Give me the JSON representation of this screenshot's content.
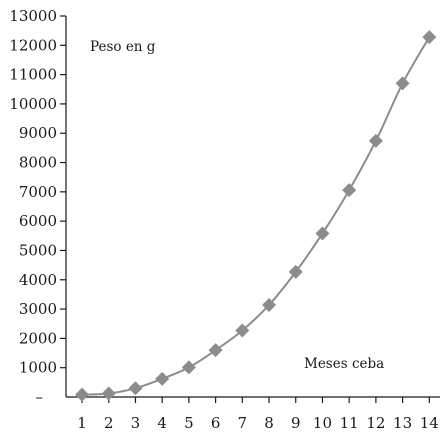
{
  "chart_data": {
    "type": "line",
    "title": "",
    "xlabel": "Meses ceba",
    "ylabel": "Peso en g",
    "y_zero_label": "–",
    "x": [
      1,
      2,
      3,
      4,
      5,
      6,
      7,
      8,
      9,
      10,
      11,
      12,
      13,
      14
    ],
    "xlim": [
      0.4,
      14.4
    ],
    "ylim": [
      0,
      13000
    ],
    "y_ticks": [
      1000,
      2000,
      3000,
      4000,
      5000,
      6000,
      7000,
      8000,
      9000,
      10000,
      11000,
      12000,
      13000
    ],
    "series": [
      {
        "color": "#8c8c8c",
        "marker": "diamond",
        "values": [
          80,
          120,
          300,
          620,
          1010,
          1600,
          2270,
          3140,
          4270,
          5580,
          7060,
          8740,
          10700,
          12280
        ]
      }
    ],
    "grid": false,
    "legend": "none"
  }
}
